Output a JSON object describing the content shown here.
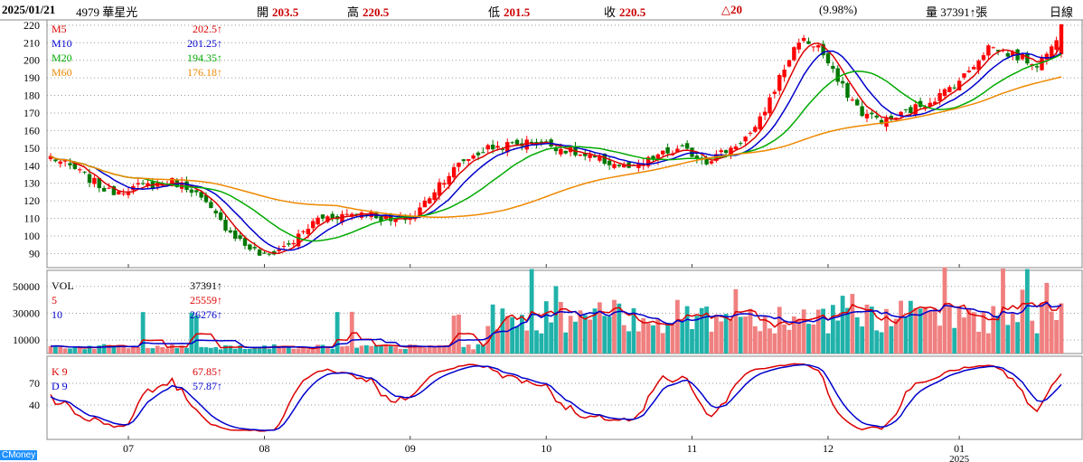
{
  "header": {
    "date": "2025/01/21",
    "stock": "4979 華星光",
    "open_label": "開",
    "open": "203.5",
    "high_label": "高",
    "high": "220.5",
    "low_label": "低",
    "low": "201.5",
    "close_label": "收",
    "close": "220.5",
    "change": "△20",
    "change_pct": "(9.98%)",
    "volume_label": "量",
    "volume": "37391↑張",
    "period": "日線"
  },
  "price_panel": {
    "legend": [
      {
        "label": "M5",
        "value": "202.5↑",
        "color": "#dd0000"
      },
      {
        "label": "M10",
        "value": "201.25↑",
        "color": "#0000cc"
      },
      {
        "label": "M20",
        "value": "194.35↑",
        "color": "#00aa00"
      },
      {
        "label": "M60",
        "value": "176.18↑",
        "color": "#ee8800"
      }
    ],
    "y_ticks": [
      90,
      100,
      110,
      120,
      130,
      140,
      150,
      160,
      170,
      180,
      190,
      200,
      210,
      220
    ]
  },
  "volume_panel": {
    "legend": [
      {
        "label": "VOL",
        "value": "37391↑",
        "color": "#000000"
      },
      {
        "label": "5",
        "value": "25559↑",
        "color": "#dd0000"
      },
      {
        "label": "10",
        "value": "26276↑",
        "color": "#0000cc"
      }
    ],
    "y_ticks": [
      "50000",
      "30000",
      "10000"
    ]
  },
  "kd_panel": {
    "legend": [
      {
        "label": "K 9",
        "value": "67.85↑",
        "color": "#dd0000"
      },
      {
        "label": "D 9",
        "value": "57.87↑",
        "color": "#0000cc"
      }
    ],
    "y_ticks": [
      "70",
      "40"
    ]
  },
  "x_axis": {
    "months": [
      "07",
      "08",
      "09",
      "10",
      "11",
      "12",
      "01"
    ],
    "year_label": "2025"
  },
  "bottom_tag": "CMoney",
  "colors": {
    "up": "#ff0000",
    "down": "#007700",
    "vol_up": "#f08080",
    "vol_down": "#20b2aa"
  },
  "chart_data": {
    "type": "candlestick",
    "close_anchors": [
      [
        0,
        145
      ],
      [
        5,
        138
      ],
      [
        12,
        125
      ],
      [
        18,
        128
      ],
      [
        25,
        131
      ],
      [
        29,
        127
      ],
      [
        35,
        108
      ],
      [
        40,
        95
      ],
      [
        44,
        88
      ],
      [
        50,
        97
      ],
      [
        55,
        110
      ],
      [
        60,
        112
      ],
      [
        65,
        114
      ],
      [
        70,
        108
      ],
      [
        75,
        112
      ],
      [
        80,
        130
      ],
      [
        85,
        143
      ],
      [
        90,
        150
      ],
      [
        95,
        152
      ],
      [
        100,
        154
      ],
      [
        105,
        150
      ],
      [
        110,
        145
      ],
      [
        116,
        141
      ],
      [
        120,
        138
      ],
      [
        125,
        146
      ],
      [
        130,
        149
      ],
      [
        135,
        143
      ],
      [
        140,
        150
      ],
      [
        145,
        160
      ],
      [
        150,
        190
      ],
      [
        154,
        212
      ],
      [
        158,
        208
      ],
      [
        162,
        188
      ],
      [
        167,
        170
      ],
      [
        172,
        165
      ],
      [
        178,
        173
      ],
      [
        183,
        180
      ],
      [
        188,
        191
      ],
      [
        193,
        208
      ],
      [
        198,
        203
      ],
      [
        203,
        198
      ],
      [
        206,
        207
      ],
      [
        208,
        220.5
      ]
    ],
    "ma_last": {
      "M5": 202.5,
      "M10": 201.25,
      "M20": 194.35,
      "M60": 176.18
    },
    "volume_last": 37391,
    "vol_ma5_last": 25559,
    "vol_ma10_last": 26276,
    "k_last": 67.85,
    "d_last": 57.87
  }
}
